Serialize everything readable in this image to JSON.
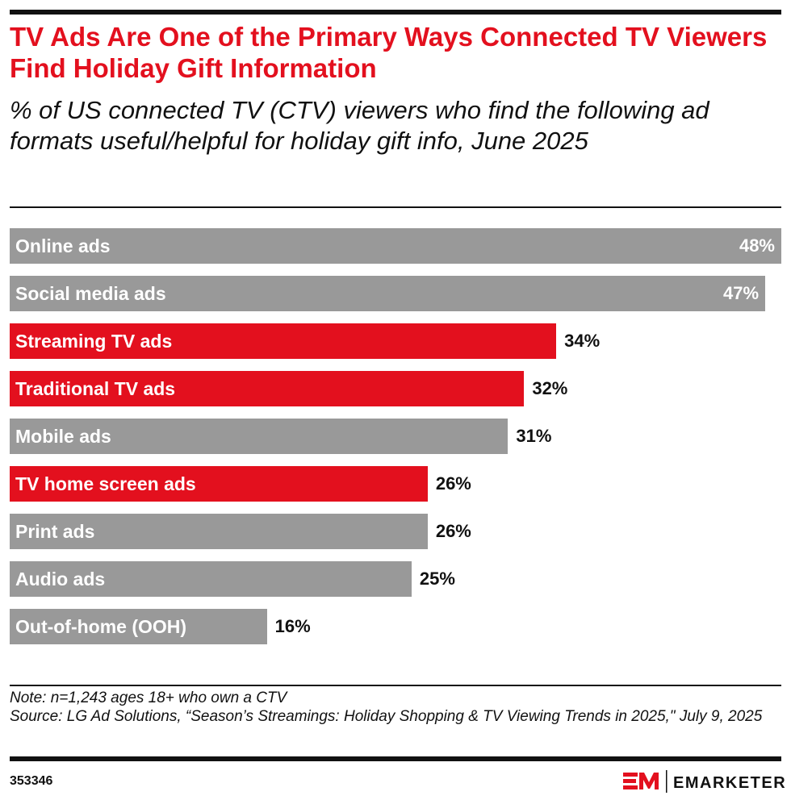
{
  "title": "TV Ads Are One of the Primary Ways Connected TV Viewers Find Holiday Gift Information",
  "subtitle": "% of US connected TV (CTV) viewers who find the following ad formats useful/helpful for holiday gift info, June 2025",
  "chart_data": {
    "type": "bar",
    "orientation": "horizontal",
    "categories": [
      "Online ads",
      "Social media ads",
      "Streaming TV ads",
      "Traditional TV ads",
      "Mobile ads",
      "TV home screen ads",
      "Print ads",
      "Audio ads",
      "Out-of-home (OOH)"
    ],
    "values": [
      48,
      47,
      34,
      32,
      31,
      26,
      26,
      25,
      16
    ],
    "labels": [
      "48%",
      "47%",
      "34%",
      "32%",
      "31%",
      "26%",
      "26%",
      "25%",
      "16%"
    ],
    "highlight": [
      false,
      false,
      true,
      true,
      false,
      true,
      false,
      false,
      false
    ],
    "colors": {
      "default": "#999999",
      "highlight": "#e3101e"
    },
    "xlim": [
      0,
      48
    ]
  },
  "note": "Note: n=1,243 ages 18+ who own a CTV",
  "source": "Source: LG Ad Solutions, “Season’s Streamings: Holiday Shopping & TV Viewing Trends in 2025,\" July 9, 2025",
  "chart_id": "353346",
  "brand": "EMARKETER"
}
